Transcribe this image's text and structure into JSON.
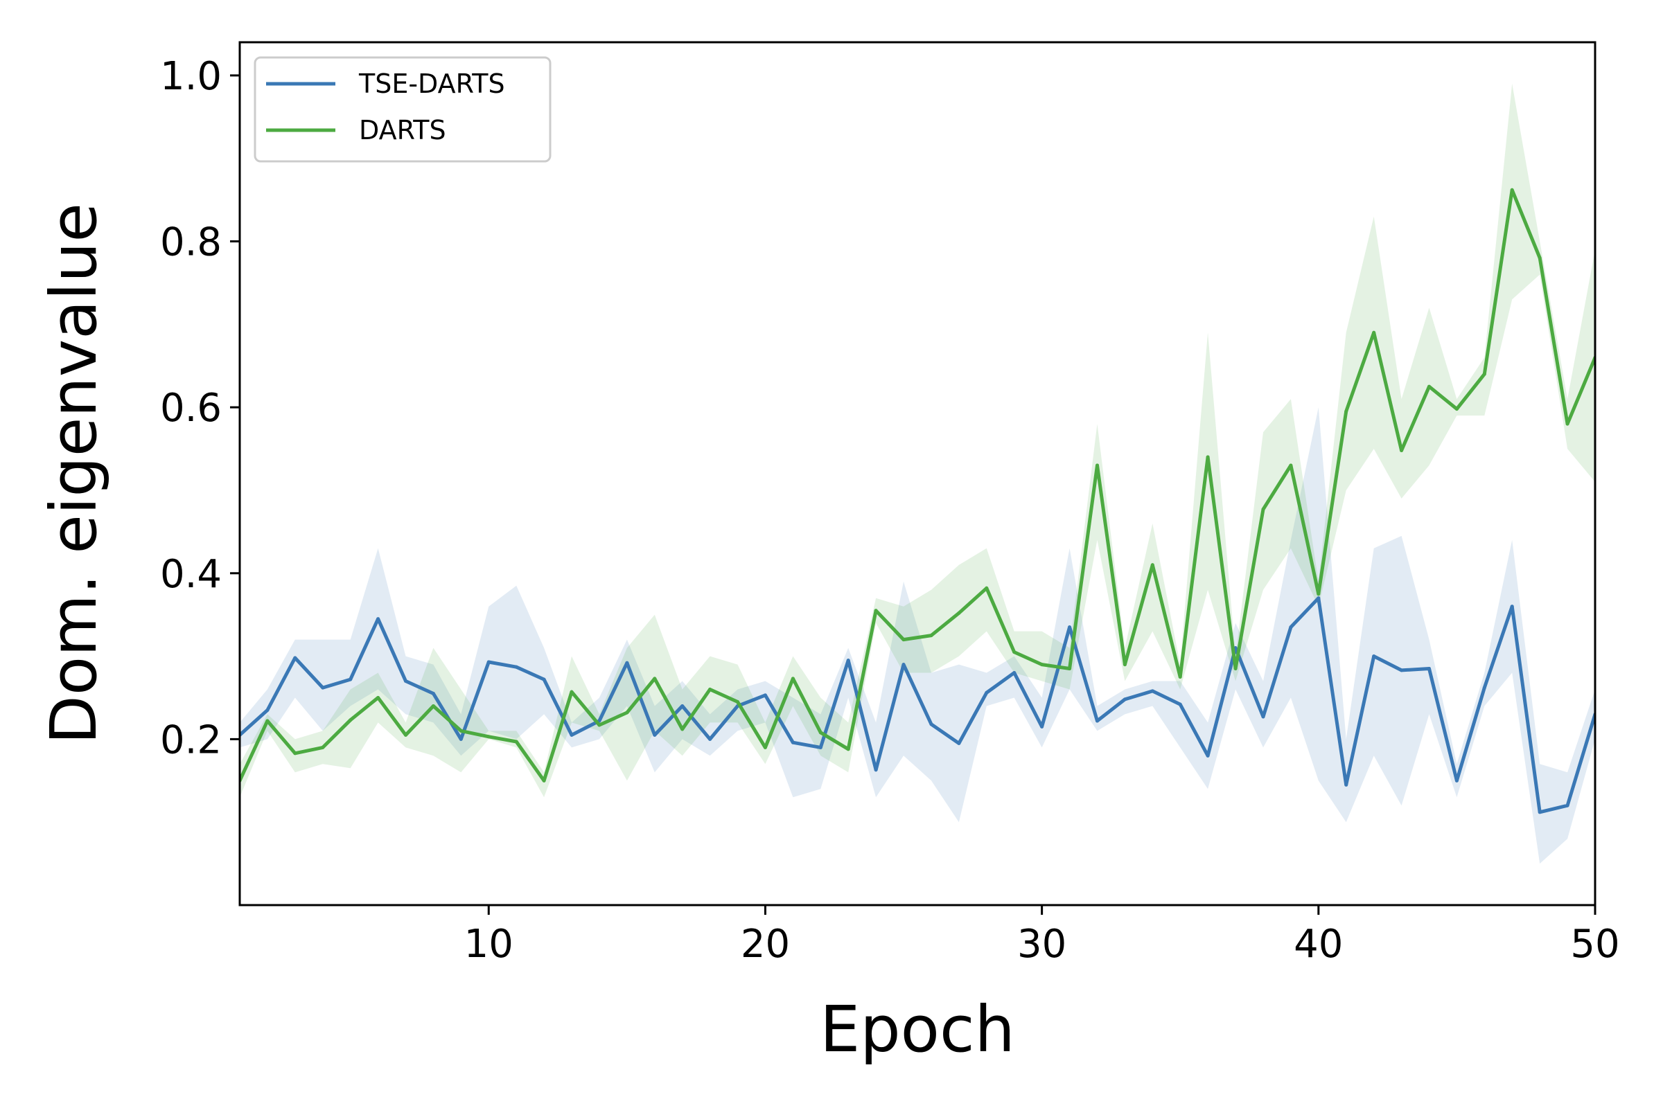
{
  "chart_data": {
    "type": "line",
    "xlabel": "Epoch",
    "ylabel": "Dom. eigenvalue",
    "xlim": [
      1,
      50
    ],
    "ylim": [
      0.0,
      1.04
    ],
    "xticks": [
      10,
      20,
      30,
      40,
      50
    ],
    "xtick_labels": [
      "10",
      "20",
      "30",
      "40",
      "50"
    ],
    "yticks": [
      0.2,
      0.4,
      0.6,
      0.8,
      1.0
    ],
    "ytick_labels": [
      "0.2",
      "0.4",
      "0.6",
      "0.8",
      "1.0"
    ],
    "grid": false,
    "legend_position": "top-left",
    "x": [
      1,
      2,
      3,
      4,
      5,
      6,
      7,
      8,
      9,
      10,
      11,
      12,
      13,
      14,
      15,
      16,
      17,
      18,
      19,
      20,
      21,
      22,
      23,
      24,
      25,
      26,
      27,
      28,
      29,
      30,
      31,
      32,
      33,
      34,
      35,
      36,
      37,
      38,
      39,
      40,
      41,
      42,
      43,
      44,
      45,
      46,
      47,
      48,
      49,
      50
    ],
    "series": [
      {
        "name": "TSE-DARTS",
        "color": "#3a78b5",
        "band_color": "#3a78b5",
        "values": [
          0.205,
          0.235,
          0.298,
          0.262,
          0.272,
          0.345,
          0.27,
          0.255,
          0.2,
          0.293,
          0.287,
          0.272,
          0.205,
          0.222,
          0.292,
          0.205,
          0.24,
          0.2,
          0.24,
          0.253,
          0.196,
          0.19,
          0.295,
          0.163,
          0.29,
          0.218,
          0.195,
          0.256,
          0.28,
          0.215,
          0.335,
          0.222,
          0.248,
          0.258,
          0.242,
          0.18,
          0.31,
          0.227,
          0.335,
          0.37,
          0.145,
          0.3,
          0.283,
          0.285,
          0.15,
          0.262,
          0.36,
          0.112,
          0.12,
          0.23
        ],
        "lower": [
          0.19,
          0.2,
          0.25,
          0.21,
          0.24,
          0.26,
          0.23,
          0.22,
          0.18,
          0.21,
          0.2,
          0.23,
          0.19,
          0.2,
          0.24,
          0.16,
          0.2,
          0.18,
          0.21,
          0.22,
          0.13,
          0.14,
          0.25,
          0.13,
          0.18,
          0.15,
          0.1,
          0.24,
          0.25,
          0.19,
          0.26,
          0.21,
          0.23,
          0.24,
          0.19,
          0.14,
          0.26,
          0.19,
          0.25,
          0.15,
          0.1,
          0.18,
          0.12,
          0.23,
          0.13,
          0.24,
          0.28,
          0.05,
          0.08,
          0.2
        ],
        "upper": [
          0.22,
          0.26,
          0.32,
          0.32,
          0.32,
          0.43,
          0.3,
          0.29,
          0.23,
          0.36,
          0.385,
          0.31,
          0.22,
          0.25,
          0.32,
          0.24,
          0.27,
          0.23,
          0.26,
          0.27,
          0.25,
          0.23,
          0.31,
          0.22,
          0.39,
          0.28,
          0.29,
          0.28,
          0.3,
          0.25,
          0.43,
          0.24,
          0.26,
          0.27,
          0.27,
          0.22,
          0.34,
          0.27,
          0.44,
          0.6,
          0.2,
          0.43,
          0.445,
          0.32,
          0.17,
          0.28,
          0.44,
          0.17,
          0.16,
          0.26
        ]
      },
      {
        "name": "DARTS",
        "color": "#4caa41",
        "band_color": "#4caa41",
        "values": [
          0.15,
          0.222,
          0.183,
          0.19,
          0.223,
          0.25,
          0.205,
          0.24,
          0.21,
          0.203,
          0.197,
          0.15,
          0.257,
          0.217,
          0.232,
          0.273,
          0.212,
          0.26,
          0.245,
          0.19,
          0.273,
          0.208,
          0.188,
          0.355,
          0.32,
          0.325,
          0.352,
          0.382,
          0.305,
          0.29,
          0.285,
          0.53,
          0.29,
          0.41,
          0.275,
          0.54,
          0.285,
          0.477,
          0.53,
          0.375,
          0.595,
          0.69,
          0.548,
          0.625,
          0.598,
          0.64,
          0.862,
          0.78,
          0.58,
          0.66
        ],
        "lower": [
          0.13,
          0.21,
          0.16,
          0.17,
          0.165,
          0.22,
          0.19,
          0.18,
          0.16,
          0.2,
          0.19,
          0.13,
          0.22,
          0.21,
          0.15,
          0.21,
          0.18,
          0.22,
          0.22,
          0.17,
          0.24,
          0.18,
          0.16,
          0.34,
          0.28,
          0.28,
          0.3,
          0.33,
          0.28,
          0.27,
          0.26,
          0.44,
          0.27,
          0.33,
          0.26,
          0.38,
          0.27,
          0.38,
          0.43,
          0.36,
          0.5,
          0.55,
          0.49,
          0.53,
          0.59,
          0.59,
          0.73,
          0.76,
          0.55,
          0.51
        ],
        "upper": [
          0.17,
          0.23,
          0.2,
          0.21,
          0.26,
          0.28,
          0.22,
          0.31,
          0.26,
          0.21,
          0.21,
          0.16,
          0.3,
          0.23,
          0.31,
          0.35,
          0.26,
          0.3,
          0.29,
          0.22,
          0.3,
          0.25,
          0.22,
          0.37,
          0.36,
          0.38,
          0.41,
          0.43,
          0.33,
          0.33,
          0.31,
          0.58,
          0.31,
          0.46,
          0.29,
          0.69,
          0.3,
          0.57,
          0.61,
          0.39,
          0.69,
          0.83,
          0.61,
          0.72,
          0.61,
          0.66,
          0.99,
          0.8,
          0.61,
          0.79
        ]
      }
    ]
  }
}
